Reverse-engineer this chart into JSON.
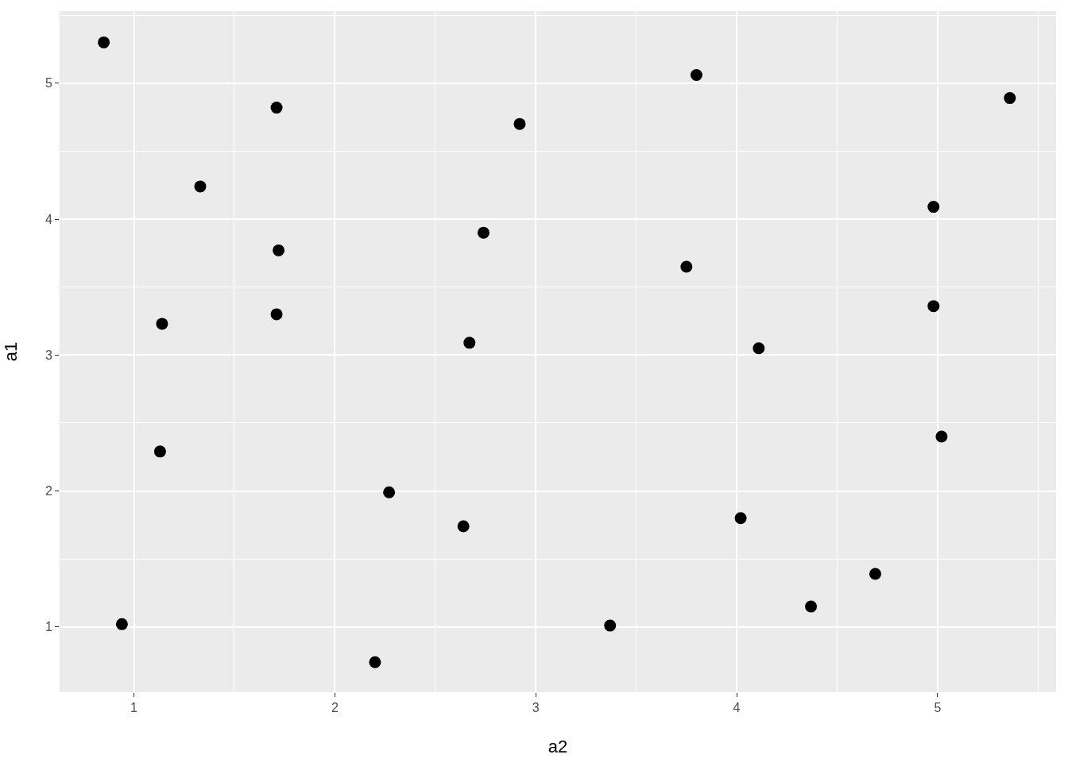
{
  "chart_data": {
    "type": "scatter",
    "xlabel": "a2",
    "ylabel": "a1",
    "color": "#000000",
    "marker": "circle",
    "grid": true,
    "x": [
      0.85,
      0.94,
      1.14,
      1.13,
      1.33,
      1.71,
      1.72,
      1.71,
      2.27,
      2.2,
      2.64,
      2.67,
      2.74,
      2.92,
      3.37,
      3.75,
      3.8,
      4.11,
      4.02,
      4.37,
      4.69,
      4.98,
      4.98,
      5.02,
      5.36
    ],
    "values": [
      5.3,
      1.02,
      3.23,
      2.29,
      4.24,
      4.82,
      3.77,
      3.3,
      1.99,
      0.74,
      1.74,
      3.09,
      3.9,
      4.7,
      1.01,
      3.65,
      5.06,
      3.05,
      1.8,
      1.15,
      1.39,
      3.36,
      4.09,
      2.4,
      4.89
    ],
    "xlim": [
      0.63,
      5.59
    ],
    "ylim": [
      0.52,
      5.53
    ],
    "xticks": [
      1,
      2,
      3,
      4,
      5
    ],
    "yticks": [
      1,
      2,
      3,
      4,
      5
    ]
  }
}
